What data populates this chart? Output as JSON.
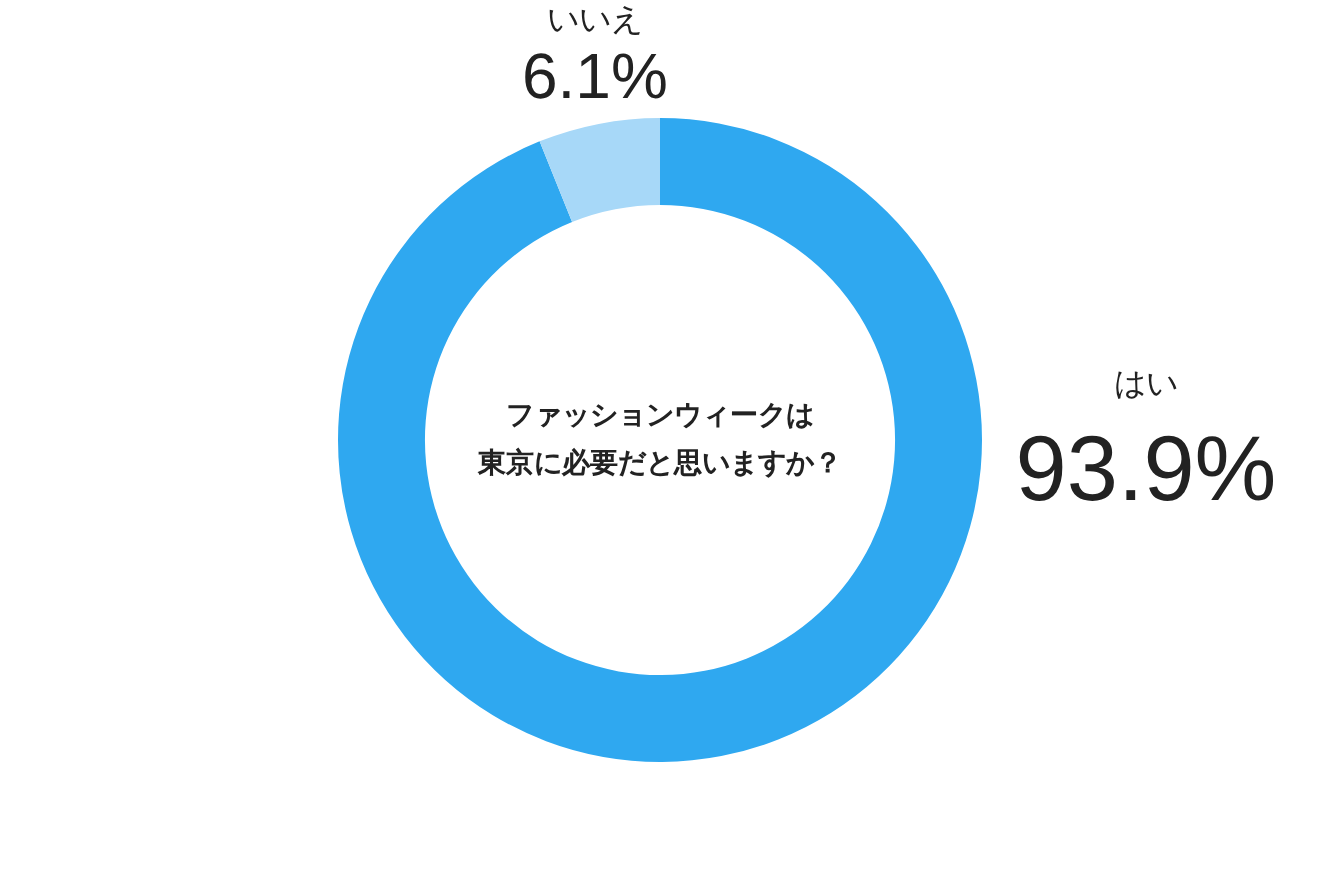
{
  "chart_data": {
    "type": "donut",
    "title": "ファッションウィークは東京に必要だと思いますか？",
    "categories": [
      "はい",
      "いいえ"
    ],
    "values": [
      93.9,
      6.1
    ],
    "colors": [
      "#2fa8f0",
      "#a7d8f8"
    ],
    "value_labels": [
      "93.9%",
      "6.1%"
    ]
  }
}
